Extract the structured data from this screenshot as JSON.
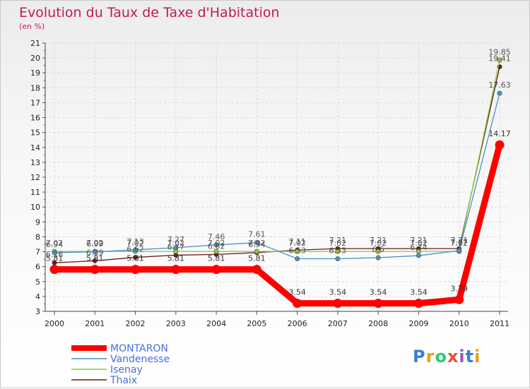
{
  "chart_data": {
    "type": "line",
    "title": "Evolution du Taux de Taxe d'Habitation",
    "subtitle": "(en %)",
    "xlabel": "",
    "ylabel": "",
    "categories": [
      "2000",
      "2001",
      "2002",
      "2003",
      "2004",
      "2005",
      "2006",
      "2007",
      "2008",
      "2009",
      "2010",
      "2011"
    ],
    "ylim": [
      3,
      21
    ],
    "yticks": [
      3,
      4,
      5,
      6,
      7,
      8,
      9,
      10,
      11,
      12,
      13,
      14,
      15,
      16,
      17,
      18,
      19,
      20,
      21
    ],
    "legend_position": "bottom-left",
    "series": [
      {
        "name": "MONTARON",
        "color": "#ff0000",
        "values": [
          5.81,
          5.81,
          5.81,
          5.81,
          5.81,
          5.81,
          3.54,
          3.54,
          3.54,
          3.54,
          3.79,
          14.17
        ],
        "labels": [
          "5.81",
          "5.81",
          "5.81",
          "5.81",
          "5.81",
          "5.81",
          "3.54",
          "3.54",
          "3.54",
          "3.54",
          "3.79",
          "14.17"
        ]
      },
      {
        "name": "Vandenesse",
        "color": "#4a90c8",
        "values": [
          6.94,
          6.99,
          7.13,
          7.27,
          7.46,
          7.61,
          6.53,
          6.53,
          6.6,
          6.74,
          7.07,
          17.63
        ],
        "labels": [
          "6.94",
          "6.99",
          "7.13",
          "7.27",
          "7.46",
          "7.61",
          "6.53",
          "6.53",
          "6.6",
          "6.74",
          "7.07",
          "17.63"
        ]
      },
      {
        "name": "Isenay",
        "color": "#88cc33",
        "values": [
          7.02,
          7.02,
          7.02,
          7.02,
          7.02,
          7.02,
          7.02,
          7.02,
          7.02,
          7.02,
          7.02,
          19.85
        ],
        "labels": [
          "7.02",
          "7.02",
          "7.02",
          "7.02",
          "7.02",
          "7.02",
          "7.02",
          "7.02",
          "7.02",
          "7.02",
          "7.02",
          "19.85"
        ]
      },
      {
        "name": "Thaix",
        "color": "#6b1a1a",
        "values": [
          6.26,
          6.39,
          6.62,
          6.77,
          6.82,
          6.94,
          7.11,
          7.21,
          7.21,
          7.21,
          7.21,
          19.41
        ],
        "labels": [
          "6.26",
          "6.39",
          "6.62",
          "6.77",
          "6.82",
          "6.94",
          "7.11",
          "7.21",
          "7.21",
          "7.21",
          "7.21",
          "19.41"
        ]
      }
    ]
  },
  "brand": {
    "letters": [
      "P",
      "r",
      "o",
      "x",
      "i",
      "t",
      "i"
    ],
    "colors": [
      "#3a7fd5",
      "#f39c12",
      "#2ecc71",
      "#e74c3c",
      "#9b59b6",
      "#3a7fd5",
      "#f39c12"
    ]
  }
}
